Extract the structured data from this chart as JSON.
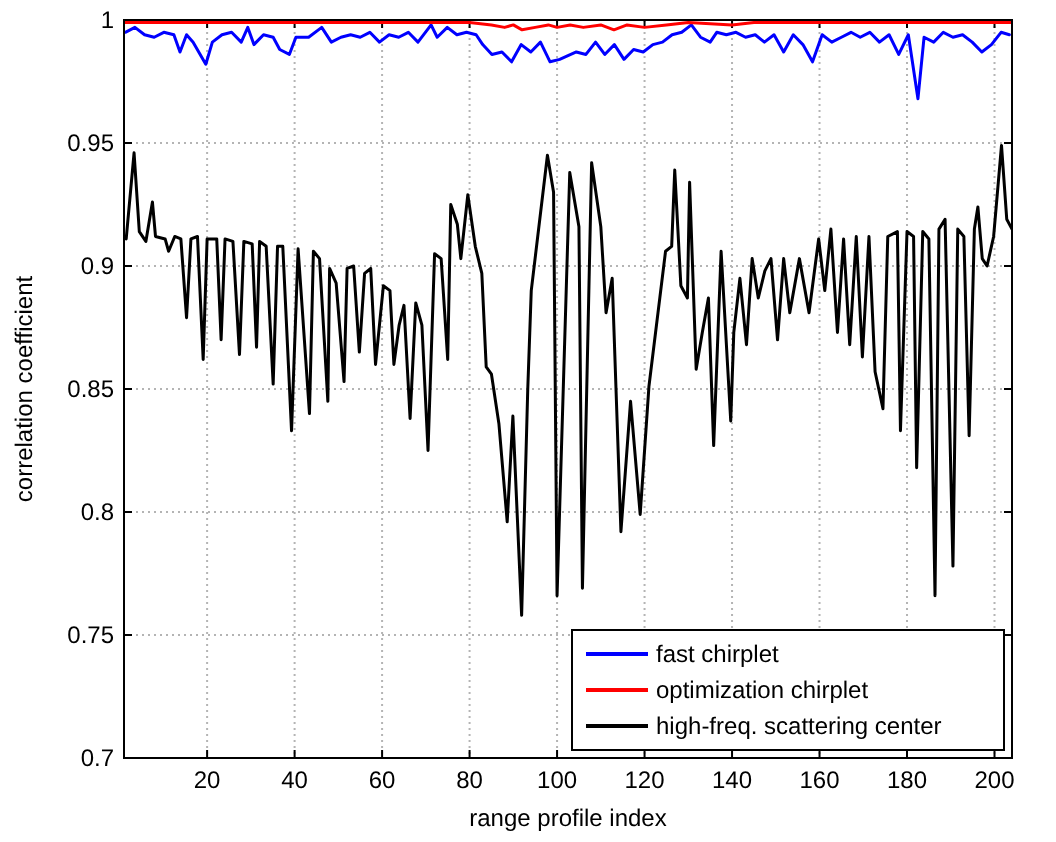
{
  "chart_data": {
    "type": "line",
    "xlabel": "range profile index",
    "ylabel": "correlation coefficient",
    "xlim": [
      1,
      204
    ],
    "ylim": [
      0.7,
      1
    ],
    "xticks": [
      20,
      40,
      60,
      80,
      100,
      120,
      140,
      160,
      180,
      200
    ],
    "yticks": [
      0.7,
      0.75,
      0.8,
      0.85,
      0.9,
      0.95,
      1
    ],
    "grid": true,
    "legend": "bottom right",
    "line_style": "solid",
    "marker": "none",
    "series": [
      {
        "name": "fast chirplet",
        "color": "#0000ff",
        "x": [
          1.3,
          3.5,
          5.7,
          7.9,
          10.1,
          12.4,
          13.8,
          15.3,
          16.8,
          19.7,
          21.2,
          23.4,
          25.6,
          27.8,
          29.3,
          30.7,
          32.9,
          35.1,
          36.6,
          38.8,
          40.3,
          43.2,
          46.2,
          48.4,
          50.6,
          52.8,
          55,
          57.2,
          59.4,
          61.6,
          63.8,
          66,
          68.2,
          71.2,
          72.6,
          74.9,
          77.1,
          79.3,
          81.5,
          83,
          85.1,
          87.4,
          89.6,
          91.8,
          94,
          96.2,
          98.4,
          100.6,
          104.4,
          106.6,
          108.8,
          110.9,
          113.1,
          115.3,
          117.5,
          119.7,
          121.9,
          124.1,
          126.3,
          128.5,
          130.7,
          132.8,
          135,
          136.5,
          138.7,
          140.9,
          143.1,
          145.3,
          147.4,
          149.6,
          151.8,
          154,
          156.2,
          158.4,
          160.6,
          162.8,
          165,
          167.2,
          169.3,
          171.5,
          173.7,
          175.9,
          178.1,
          180.3,
          182.5,
          183.9,
          186.1,
          188.3,
          190.5,
          192.7,
          194.9,
          197.1,
          199.3,
          201.5,
          203.4
        ],
        "values": [
          0.995,
          0.997,
          0.994,
          0.993,
          0.995,
          0.994,
          0.987,
          0.994,
          0.991,
          0.982,
          0.991,
          0.994,
          0.995,
          0.991,
          0.997,
          0.99,
          0.994,
          0.993,
          0.988,
          0.986,
          0.993,
          0.993,
          0.997,
          0.991,
          0.993,
          0.994,
          0.993,
          0.995,
          0.991,
          0.994,
          0.993,
          0.995,
          0.991,
          0.998,
          0.993,
          0.997,
          0.994,
          0.995,
          0.994,
          0.99,
          0.986,
          0.987,
          0.983,
          0.99,
          0.987,
          0.991,
          0.983,
          0.984,
          0.987,
          0.986,
          0.991,
          0.986,
          0.99,
          0.984,
          0.988,
          0.987,
          0.99,
          0.991,
          0.994,
          0.995,
          0.998,
          0.993,
          0.991,
          0.995,
          0.994,
          0.995,
          0.993,
          0.994,
          0.991,
          0.994,
          0.987,
          0.994,
          0.99,
          0.983,
          0.994,
          0.991,
          0.993,
          0.995,
          0.993,
          0.995,
          0.991,
          0.994,
          0.986,
          0.994,
          0.968,
          0.993,
          0.991,
          0.995,
          0.993,
          0.994,
          0.991,
          0.987,
          0.99,
          0.995,
          0.994
        ]
      },
      {
        "name": "optimization chirplet",
        "color": "#ff0000",
        "x": [
          1,
          10,
          20,
          30,
          40,
          50,
          60,
          70,
          80,
          85,
          88,
          90,
          92,
          95,
          98,
          100,
          103,
          106,
          110,
          113,
          116,
          120,
          125,
          130,
          140,
          145,
          150,
          160,
          170,
          180,
          190,
          200,
          204
        ],
        "values": [
          0.999,
          0.999,
          0.999,
          0.999,
          0.999,
          0.999,
          0.999,
          0.999,
          0.999,
          0.998,
          0.997,
          0.998,
          0.996,
          0.997,
          0.998,
          0.997,
          0.998,
          0.997,
          0.998,
          0.996,
          0.998,
          0.997,
          0.998,
          0.999,
          0.998,
          0.999,
          0.999,
          0.999,
          0.999,
          0.999,
          0.999,
          0.999,
          0.999
        ]
      },
      {
        "name": "high-freq. scattering center",
        "color": "#000000",
        "x": [
          1.5,
          3.3,
          4.5,
          6,
          7.5,
          8.2,
          10.4,
          11.2,
          12.6,
          14,
          15.3,
          16.3,
          17.8,
          19.1,
          20,
          22.2,
          23.2,
          24.1,
          25.9,
          27.4,
          28.4,
          30.3,
          31.3,
          32,
          33.5,
          35.1,
          36.1,
          37.3,
          39.3,
          40.8,
          43.4,
          44.3,
          45.7,
          47.6,
          48,
          49.5,
          51.3,
          52,
          53.5,
          54.8,
          56,
          57.4,
          58.5,
          60.3,
          61.8,
          62.7,
          63.9,
          65,
          66.4,
          67.7,
          69.1,
          70.5,
          72,
          73.5,
          75,
          75.7,
          77.2,
          78,
          79.6,
          81.3,
          82.8,
          83.8,
          85,
          86.7,
          88.6,
          89.9,
          91.9,
          93.3,
          94.1,
          97.8,
          99.2,
          100,
          102.9,
          105,
          105.8,
          107.9,
          110,
          111.2,
          112.6,
          114.6,
          116.8,
          119,
          121,
          124.8,
          126.2,
          126.9,
          128.3,
          129.8,
          130.3,
          131.8,
          133.2,
          134.6,
          135.8,
          137.5,
          139.7,
          140.4,
          141.8,
          143.3,
          144.6,
          146,
          147.5,
          148.9,
          150.4,
          151.8,
          153.2,
          155.4,
          157.6,
          159.8,
          161.2,
          162.6,
          164.1,
          165.5,
          166.9,
          168.4,
          169.8,
          171.3,
          172.7,
          174.5,
          175.6,
          177.8,
          178.5,
          180,
          181.5,
          182.2,
          183.6,
          185,
          186.4,
          187.3,
          188.7,
          190.5,
          191.6,
          193,
          194.2,
          195.4,
          196.2,
          197.2,
          198.3,
          199.8,
          201.6,
          202.8,
          204
        ],
        "values": [
          0.911,
          0.946,
          0.914,
          0.91,
          0.926,
          0.912,
          0.911,
          0.906,
          0.912,
          0.911,
          0.879,
          0.911,
          0.912,
          0.862,
          0.911,
          0.911,
          0.87,
          0.911,
          0.91,
          0.864,
          0.91,
          0.909,
          0.867,
          0.91,
          0.908,
          0.852,
          0.908,
          0.908,
          0.833,
          0.907,
          0.84,
          0.906,
          0.903,
          0.845,
          0.899,
          0.893,
          0.853,
          0.899,
          0.9,
          0.865,
          0.897,
          0.899,
          0.86,
          0.892,
          0.89,
          0.86,
          0.876,
          0.884,
          0.838,
          0.885,
          0.876,
          0.825,
          0.905,
          0.903,
          0.862,
          0.925,
          0.917,
          0.903,
          0.929,
          0.908,
          0.897,
          0.859,
          0.856,
          0.836,
          0.796,
          0.839,
          0.758,
          0.85,
          0.89,
          0.945,
          0.93,
          0.766,
          0.938,
          0.916,
          0.769,
          0.942,
          0.916,
          0.881,
          0.895,
          0.792,
          0.845,
          0.799,
          0.851,
          0.906,
          0.908,
          0.939,
          0.892,
          0.887,
          0.934,
          0.858,
          0.873,
          0.887,
          0.827,
          0.906,
          0.837,
          0.873,
          0.895,
          0.868,
          0.903,
          0.887,
          0.898,
          0.903,
          0.87,
          0.903,
          0.881,
          0.903,
          0.881,
          0.911,
          0.89,
          0.915,
          0.873,
          0.911,
          0.868,
          0.912,
          0.863,
          0.912,
          0.857,
          0.842,
          0.912,
          0.914,
          0.833,
          0.914,
          0.912,
          0.818,
          0.914,
          0.911,
          0.766,
          0.915,
          0.919,
          0.778,
          0.915,
          0.912,
          0.831,
          0.915,
          0.924,
          0.903,
          0.9,
          0.912,
          0.949,
          0.919,
          0.915
        ]
      }
    ]
  }
}
